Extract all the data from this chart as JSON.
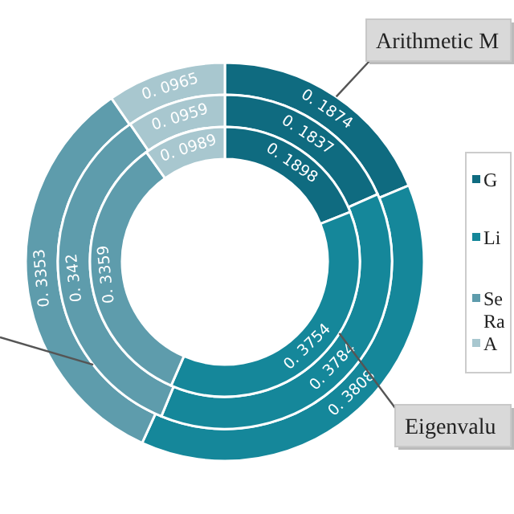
{
  "chart_data": {
    "type": "donut",
    "categories": [
      "G",
      "Li",
      "Se Ra",
      "A"
    ],
    "colors": [
      "#0f6b80",
      "#15879a",
      "#5e9cac",
      "#a8c7cf"
    ],
    "legend": "right",
    "series": [
      {
        "name": "Arithmetic M",
        "values": [
          0.1874,
          0.3808,
          0.3353,
          0.0965
        ],
        "value_labels": [
          "0. 1874",
          "0. 3808",
          "0. 3353",
          "0. 0965"
        ]
      },
      {
        "values": [
          0.1837,
          0.3784,
          0.342,
          0.0959
        ],
        "value_labels": [
          "0. 1837",
          "0. 3784",
          "0. 342",
          "0. 0959"
        ]
      },
      {
        "name": "Eigenvalu",
        "values": [
          0.1898,
          0.3754,
          0.3359,
          0.0989
        ],
        "value_labels": [
          "0. 1898",
          "0. 3754",
          "0. 3359",
          "0. 0989"
        ]
      }
    ]
  }
}
